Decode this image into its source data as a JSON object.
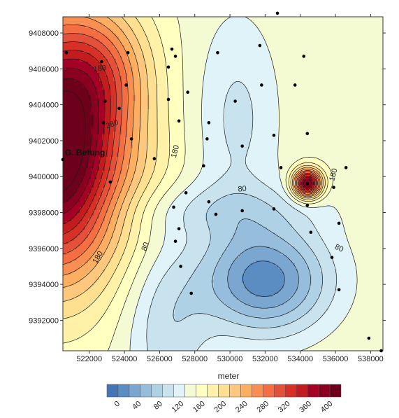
{
  "chart_data": {
    "type": "contour",
    "x_range": [
      520500,
      538700
    ],
    "y_range": [
      9390300,
      9408900
    ],
    "x_ticks": [
      522000,
      524000,
      526000,
      528000,
      530000,
      532000,
      534000,
      536000,
      538000
    ],
    "y_ticks": [
      9392000,
      9394000,
      9396000,
      9398000,
      9400000,
      9402000,
      9404000,
      9406000,
      9408000
    ],
    "x_tick_labels": [
      "522000",
      "524000",
      "526000",
      "528000",
      "530000",
      "532000",
      "534000",
      "536000",
      "538000"
    ],
    "y_tick_labels": [
      "9392000",
      "9394000",
      "9396000",
      "9398000",
      "9400000",
      "9402000",
      "9404000",
      "9406000",
      "9408000"
    ],
    "contour_labels": [
      {
        "text": "180",
        "x": 522600,
        "y": 9406000,
        "angle": -8
      },
      {
        "text": "280",
        "x": 523300,
        "y": 9402900,
        "angle": -20
      },
      {
        "text": "180",
        "x": 526900,
        "y": 9401400,
        "angle": -75
      },
      {
        "text": "80",
        "x": 530700,
        "y": 9399300,
        "angle": -5
      },
      {
        "text": "180",
        "x": 535900,
        "y": 9400100,
        "angle": -75
      },
      {
        "text": "80",
        "x": 536200,
        "y": 9396000,
        "angle": 25
      },
      {
        "text": "80",
        "x": 525200,
        "y": 9396100,
        "angle": -70
      },
      {
        "text": "180",
        "x": 522500,
        "y": 9395500,
        "angle": -60
      }
    ],
    "peak": {
      "label": "G. Betung",
      "x": 520500,
      "y": 9400950
    },
    "stations": [
      [
        520700,
        9406900
      ],
      [
        522700,
        9406400
      ],
      [
        524200,
        9406900
      ],
      [
        524100,
        9405100
      ],
      [
        522900,
        9404200
      ],
      [
        523700,
        9403800
      ],
      [
        524400,
        9402100
      ],
      [
        522800,
        9403000
      ],
      [
        523200,
        9399700
      ],
      [
        525700,
        9401000
      ],
      [
        526700,
        9407100
      ],
      [
        526900,
        9406700
      ],
      [
        526500,
        9406100
      ],
      [
        526500,
        9404300
      ],
      [
        527600,
        9404700
      ],
      [
        527100,
        9403100
      ],
      [
        529300,
        9406900
      ],
      [
        528800,
        9403000
      ],
      [
        528700,
        9402100
      ],
      [
        528500,
        9400600
      ],
      [
        530300,
        9404200
      ],
      [
        530700,
        9401700
      ],
      [
        531700,
        9407300
      ],
      [
        531800,
        9405100
      ],
      [
        532500,
        9402300
      ],
      [
        532900,
        9400500
      ],
      [
        533700,
        9405100
      ],
      [
        534200,
        9406700
      ],
      [
        534400,
        9402400
      ],
      [
        534400,
        9399600
      ],
      [
        535900,
        9399400
      ],
      [
        536600,
        9400500
      ],
      [
        536200,
        9397400
      ],
      [
        534600,
        9396900
      ],
      [
        534400,
        9398400
      ],
      [
        532500,
        9398200
      ],
      [
        530700,
        9398100
      ],
      [
        529200,
        9397900
      ],
      [
        528800,
        9398600
      ],
      [
        527500,
        9399100
      ],
      [
        526800,
        9398300
      ],
      [
        527100,
        9397100
      ],
      [
        526900,
        9396400
      ],
      [
        527200,
        9395000
      ],
      [
        527800,
        9393500
      ],
      [
        535800,
        9395500
      ],
      [
        536200,
        9393700
      ],
      [
        537900,
        9391000
      ],
      [
        538600,
        9390300
      ],
      [
        532700,
        9409100
      ],
      [
        520500,
        9400950
      ]
    ],
    "legend": {
      "title": "meter",
      "ticks": [
        "0",
        "40",
        "80",
        "120",
        "160",
        "200",
        "240",
        "280",
        "320",
        "360",
        "400"
      ],
      "min": -20,
      "max": 420,
      "step": 20,
      "colors": [
        "#4575b4",
        "#5b8cc2",
        "#7aa6d0",
        "#96bddc",
        "#afd1e6",
        "#c9e3ee",
        "#e0f3f8",
        "#f4fbd3",
        "#ffffbf",
        "#fff2a8",
        "#fee090",
        "#fdc77d",
        "#fdae61",
        "#f98e52",
        "#f46d43",
        "#e4513b",
        "#d73027",
        "#c21c1e",
        "#a50026",
        "#8b0020",
        "#6d001a"
      ]
    }
  }
}
